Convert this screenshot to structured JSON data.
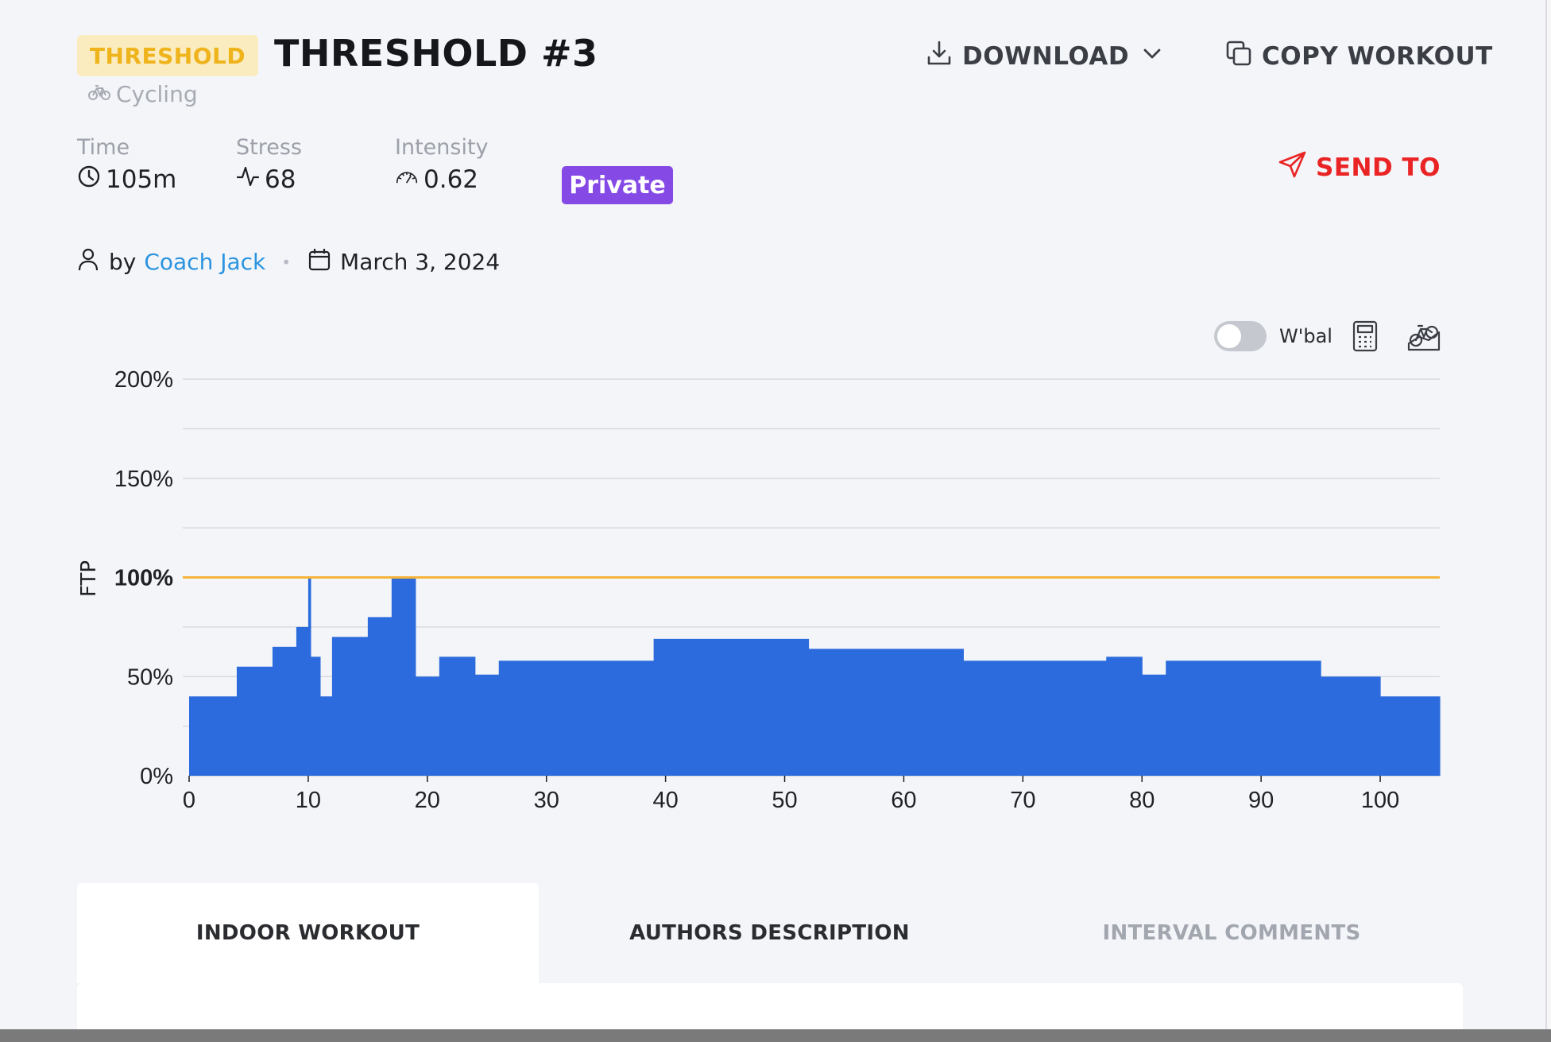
{
  "header": {
    "tag": "THRESHOLD",
    "title": "THRESHOLD #3",
    "sport": "Cycling",
    "download_label": "DOWNLOAD",
    "copy_label": "COPY WORKOUT",
    "send_label": "SEND TO"
  },
  "stats": {
    "time_label": "Time",
    "time_value": "105m",
    "stress_label": "Stress",
    "stress_value": "68",
    "intensity_label": "Intensity",
    "intensity_value": "0.62"
  },
  "visibility_badge": "Private",
  "byline": {
    "prefix": "by",
    "author": "Coach Jack",
    "date": "March 3, 2024"
  },
  "chart_controls": {
    "wbal_label": "W'bal",
    "wbal_enabled": false
  },
  "colors": {
    "bar": "#2c6bdd",
    "ftp_line": "#f6b53a",
    "accent_red": "#ea2424",
    "private": "#8549e6",
    "tag_text": "#efb31c",
    "link": "#2b94e0"
  },
  "icons": [
    "bike-icon",
    "download-icon",
    "chevron-down-icon",
    "copy-icon",
    "send-icon",
    "clock-icon",
    "pulse-icon",
    "gauge-icon",
    "user-icon",
    "calendar-icon",
    "calculator-icon",
    "bike-chart-icon"
  ],
  "chart_data": {
    "type": "area",
    "ylabel": "FTP",
    "ylim": [
      0,
      200
    ],
    "xlim": [
      0,
      105
    ],
    "yticks": [
      "0%",
      "50%",
      "100%",
      "150%",
      "200%"
    ],
    "xticks": [
      "0",
      "10",
      "20",
      "30",
      "40",
      "50",
      "60",
      "70",
      "80",
      "90",
      "100"
    ],
    "grid": true,
    "ftp_line": 100,
    "segments": [
      {
        "x0": 0,
        "x1": 4,
        "y": 40
      },
      {
        "x0": 4,
        "x1": 7,
        "y": 55
      },
      {
        "x0": 7,
        "x1": 9,
        "y": 65
      },
      {
        "x0": 9,
        "x1": 10,
        "y": 75
      },
      {
        "x0": 10,
        "x1": 10.2,
        "y": 100
      },
      {
        "x0": 10.2,
        "x1": 11,
        "y": 60
      },
      {
        "x0": 11,
        "x1": 12,
        "y": 40
      },
      {
        "x0": 12,
        "x1": 15,
        "y": 70
      },
      {
        "x0": 15,
        "x1": 17,
        "y": 80
      },
      {
        "x0": 17,
        "x1": 19,
        "y": 100
      },
      {
        "x0": 19,
        "x1": 21,
        "y": 50
      },
      {
        "x0": 21,
        "x1": 24,
        "y": 60
      },
      {
        "x0": 24,
        "x1": 26,
        "y": 51
      },
      {
        "x0": 26,
        "x1": 39,
        "y": 58
      },
      {
        "x0": 39,
        "x1": 52,
        "y": 69
      },
      {
        "x0": 52,
        "x1": 65,
        "y": 64
      },
      {
        "x0": 65,
        "x1": 77,
        "y": 58
      },
      {
        "x0": 77,
        "x1": 80,
        "y": 60
      },
      {
        "x0": 80,
        "x1": 82,
        "y": 51
      },
      {
        "x0": 82,
        "x1": 95,
        "y": 58
      },
      {
        "x0": 95,
        "x1": 100,
        "y": 50
      },
      {
        "x0": 100,
        "x1": 105,
        "y": 40
      }
    ]
  },
  "tabs": [
    {
      "label": "INDOOR WORKOUT",
      "active": true
    },
    {
      "label": "AUTHORS DESCRIPTION",
      "active": false
    },
    {
      "label": "INTERVAL COMMENTS",
      "active": false
    }
  ]
}
